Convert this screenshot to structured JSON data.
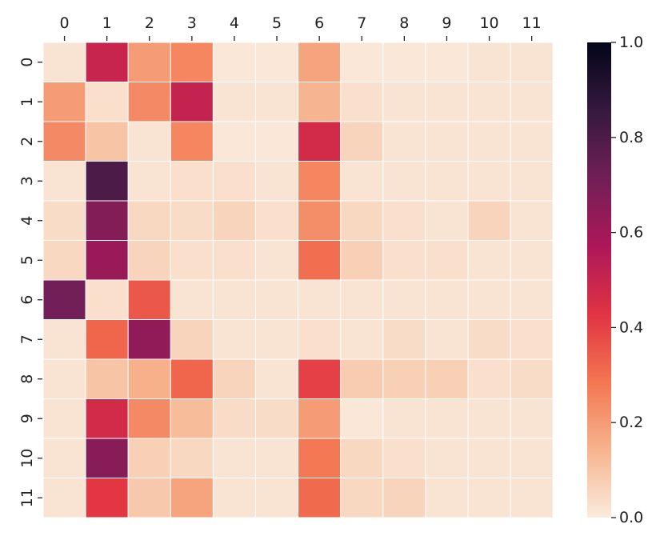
{
  "chart_data": {
    "type": "heatmap",
    "title": "",
    "xlabel": "",
    "ylabel": "",
    "x_tick_position": "top",
    "x_categories": [
      "0",
      "1",
      "2",
      "3",
      "4",
      "5",
      "6",
      "7",
      "8",
      "9",
      "10",
      "11"
    ],
    "y_categories": [
      "0",
      "1",
      "2",
      "3",
      "4",
      "5",
      "6",
      "7",
      "8",
      "9",
      "10",
      "11"
    ],
    "values": [
      [
        0.02,
        0.5,
        0.2,
        0.25,
        0.01,
        0.01,
        0.18,
        0.01,
        0.01,
        0.01,
        0.02,
        0.02
      ],
      [
        0.2,
        0.03,
        0.24,
        0.51,
        0.02,
        0.02,
        0.14,
        0.03,
        0.02,
        0.02,
        0.02,
        0.02
      ],
      [
        0.24,
        0.1,
        0.02,
        0.25,
        0.01,
        0.01,
        0.47,
        0.06,
        0.02,
        0.02,
        0.02,
        0.02
      ],
      [
        0.02,
        0.8,
        0.02,
        0.03,
        0.03,
        0.02,
        0.25,
        0.02,
        0.02,
        0.02,
        0.02,
        0.02
      ],
      [
        0.04,
        0.67,
        0.05,
        0.04,
        0.06,
        0.03,
        0.23,
        0.05,
        0.03,
        0.02,
        0.06,
        0.02
      ],
      [
        0.05,
        0.62,
        0.06,
        0.03,
        0.03,
        0.02,
        0.3,
        0.07,
        0.03,
        0.03,
        0.02,
        0.02
      ],
      [
        0.71,
        0.03,
        0.35,
        0.02,
        0.02,
        0.02,
        0.02,
        0.02,
        0.02,
        0.02,
        0.02,
        0.02
      ],
      [
        0.02,
        0.32,
        0.64,
        0.06,
        0.02,
        0.02,
        0.03,
        0.02,
        0.04,
        0.02,
        0.04,
        0.03
      ],
      [
        0.02,
        0.1,
        0.15,
        0.32,
        0.06,
        0.02,
        0.4,
        0.08,
        0.07,
        0.07,
        0.03,
        0.04
      ],
      [
        0.02,
        0.47,
        0.24,
        0.12,
        0.04,
        0.04,
        0.2,
        0.01,
        0.02,
        0.02,
        0.02,
        0.02
      ],
      [
        0.02,
        0.66,
        0.07,
        0.05,
        0.02,
        0.02,
        0.28,
        0.05,
        0.03,
        0.02,
        0.02,
        0.02
      ],
      [
        0.02,
        0.42,
        0.09,
        0.18,
        0.02,
        0.02,
        0.31,
        0.05,
        0.06,
        0.02,
        0.02,
        0.02
      ]
    ],
    "colorbar": {
      "range": [
        0.0,
        1.0
      ],
      "ticks": [
        "0.0",
        "0.2",
        "0.4",
        "0.6",
        "0.8",
        "1.0"
      ],
      "colormap": "rocket_r",
      "color_stops": [
        "#faebdd",
        "#f6b48e",
        "#f37651",
        "#e13342",
        "#ad1759",
        "#701f57",
        "#35193e",
        "#03051a"
      ]
    },
    "grid_line_color": "#ffffff"
  }
}
